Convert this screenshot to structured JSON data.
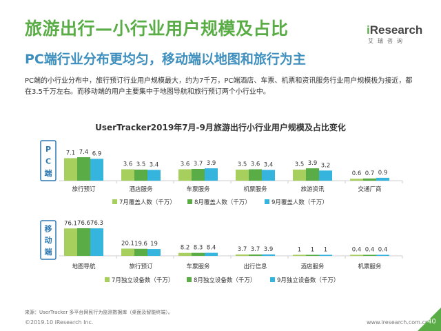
{
  "header": {
    "title": "旅游出行—小行业用户规模及占比",
    "subtitle": "PC端行业分布更均匀，移动端以地图和旅行为主",
    "body": "PC端的小行业分布中，旅行预订行业用户规模最大，约为7千万，PC端酒店、车票、机票和资讯服务行业用户规模极为接近，都在3.5千万左右。而移动端的用户主要集中于地图导航和旅行预订两个小行业中。"
  },
  "logo": {
    "text_i": "i",
    "text_rest": "Research",
    "sub": "艾瑞咨询"
  },
  "colors": {
    "title_green": "#5aad46",
    "subtitle_blue": "#3e8fbd",
    "bar_light_green": "#a6cf5d",
    "bar_green": "#5aad46",
    "bar_blue": "#35b5dd",
    "section_border": "#2b78b2"
  },
  "chart_data": [
    {
      "type": "bar",
      "title": "UserTracker2019年7月-9月旅游出行小行业用户规模及占比变化",
      "section_label": "PC端",
      "categories": [
        "旅行预订",
        "酒店服务",
        "车票服务",
        "机票服务",
        "旅游资讯",
        "交通厂商"
      ],
      "series": [
        {
          "name": "7月覆盖人数（千万）",
          "values": [
            7.1,
            3.6,
            3.6,
            3.5,
            3.5,
            0.6
          ]
        },
        {
          "name": "8月覆盖人数（千万）",
          "values": [
            7.4,
            3.5,
            3.7,
            3.6,
            3.9,
            0.7
          ]
        },
        {
          "name": "9月覆盖人数（千万）",
          "values": [
            6.9,
            3.4,
            3.9,
            3.4,
            3.2,
            0.9
          ]
        }
      ],
      "grid": false
    },
    {
      "type": "bar",
      "section_label": "移动端",
      "categories": [
        "地图导航",
        "旅行预订",
        "车票服务",
        "出行信息",
        "酒店服务",
        "机票服务"
      ],
      "series": [
        {
          "name": "7月独立设备数（千万）",
          "values": [
            76.1,
            20.1,
            8.2,
            3.7,
            1.0,
            0.4
          ]
        },
        {
          "name": "8月独立设备数（千万）",
          "values": [
            76.6,
            19.6,
            8.3,
            3.7,
            1.0,
            0.4
          ]
        },
        {
          "name": "9月独立设备数（千万）",
          "values": [
            76.3,
            19.0,
            8.4,
            3.9,
            1.0,
            0.4
          ]
        }
      ],
      "grid": false
    }
  ],
  "footer": {
    "source": "来源：UserTracker 多平台网民行为监测数据库（桌面及智能终端）。",
    "copyright": "©2019.10 iResearch Inc.",
    "site": "www.iresearch.com.cn",
    "page": "40"
  }
}
